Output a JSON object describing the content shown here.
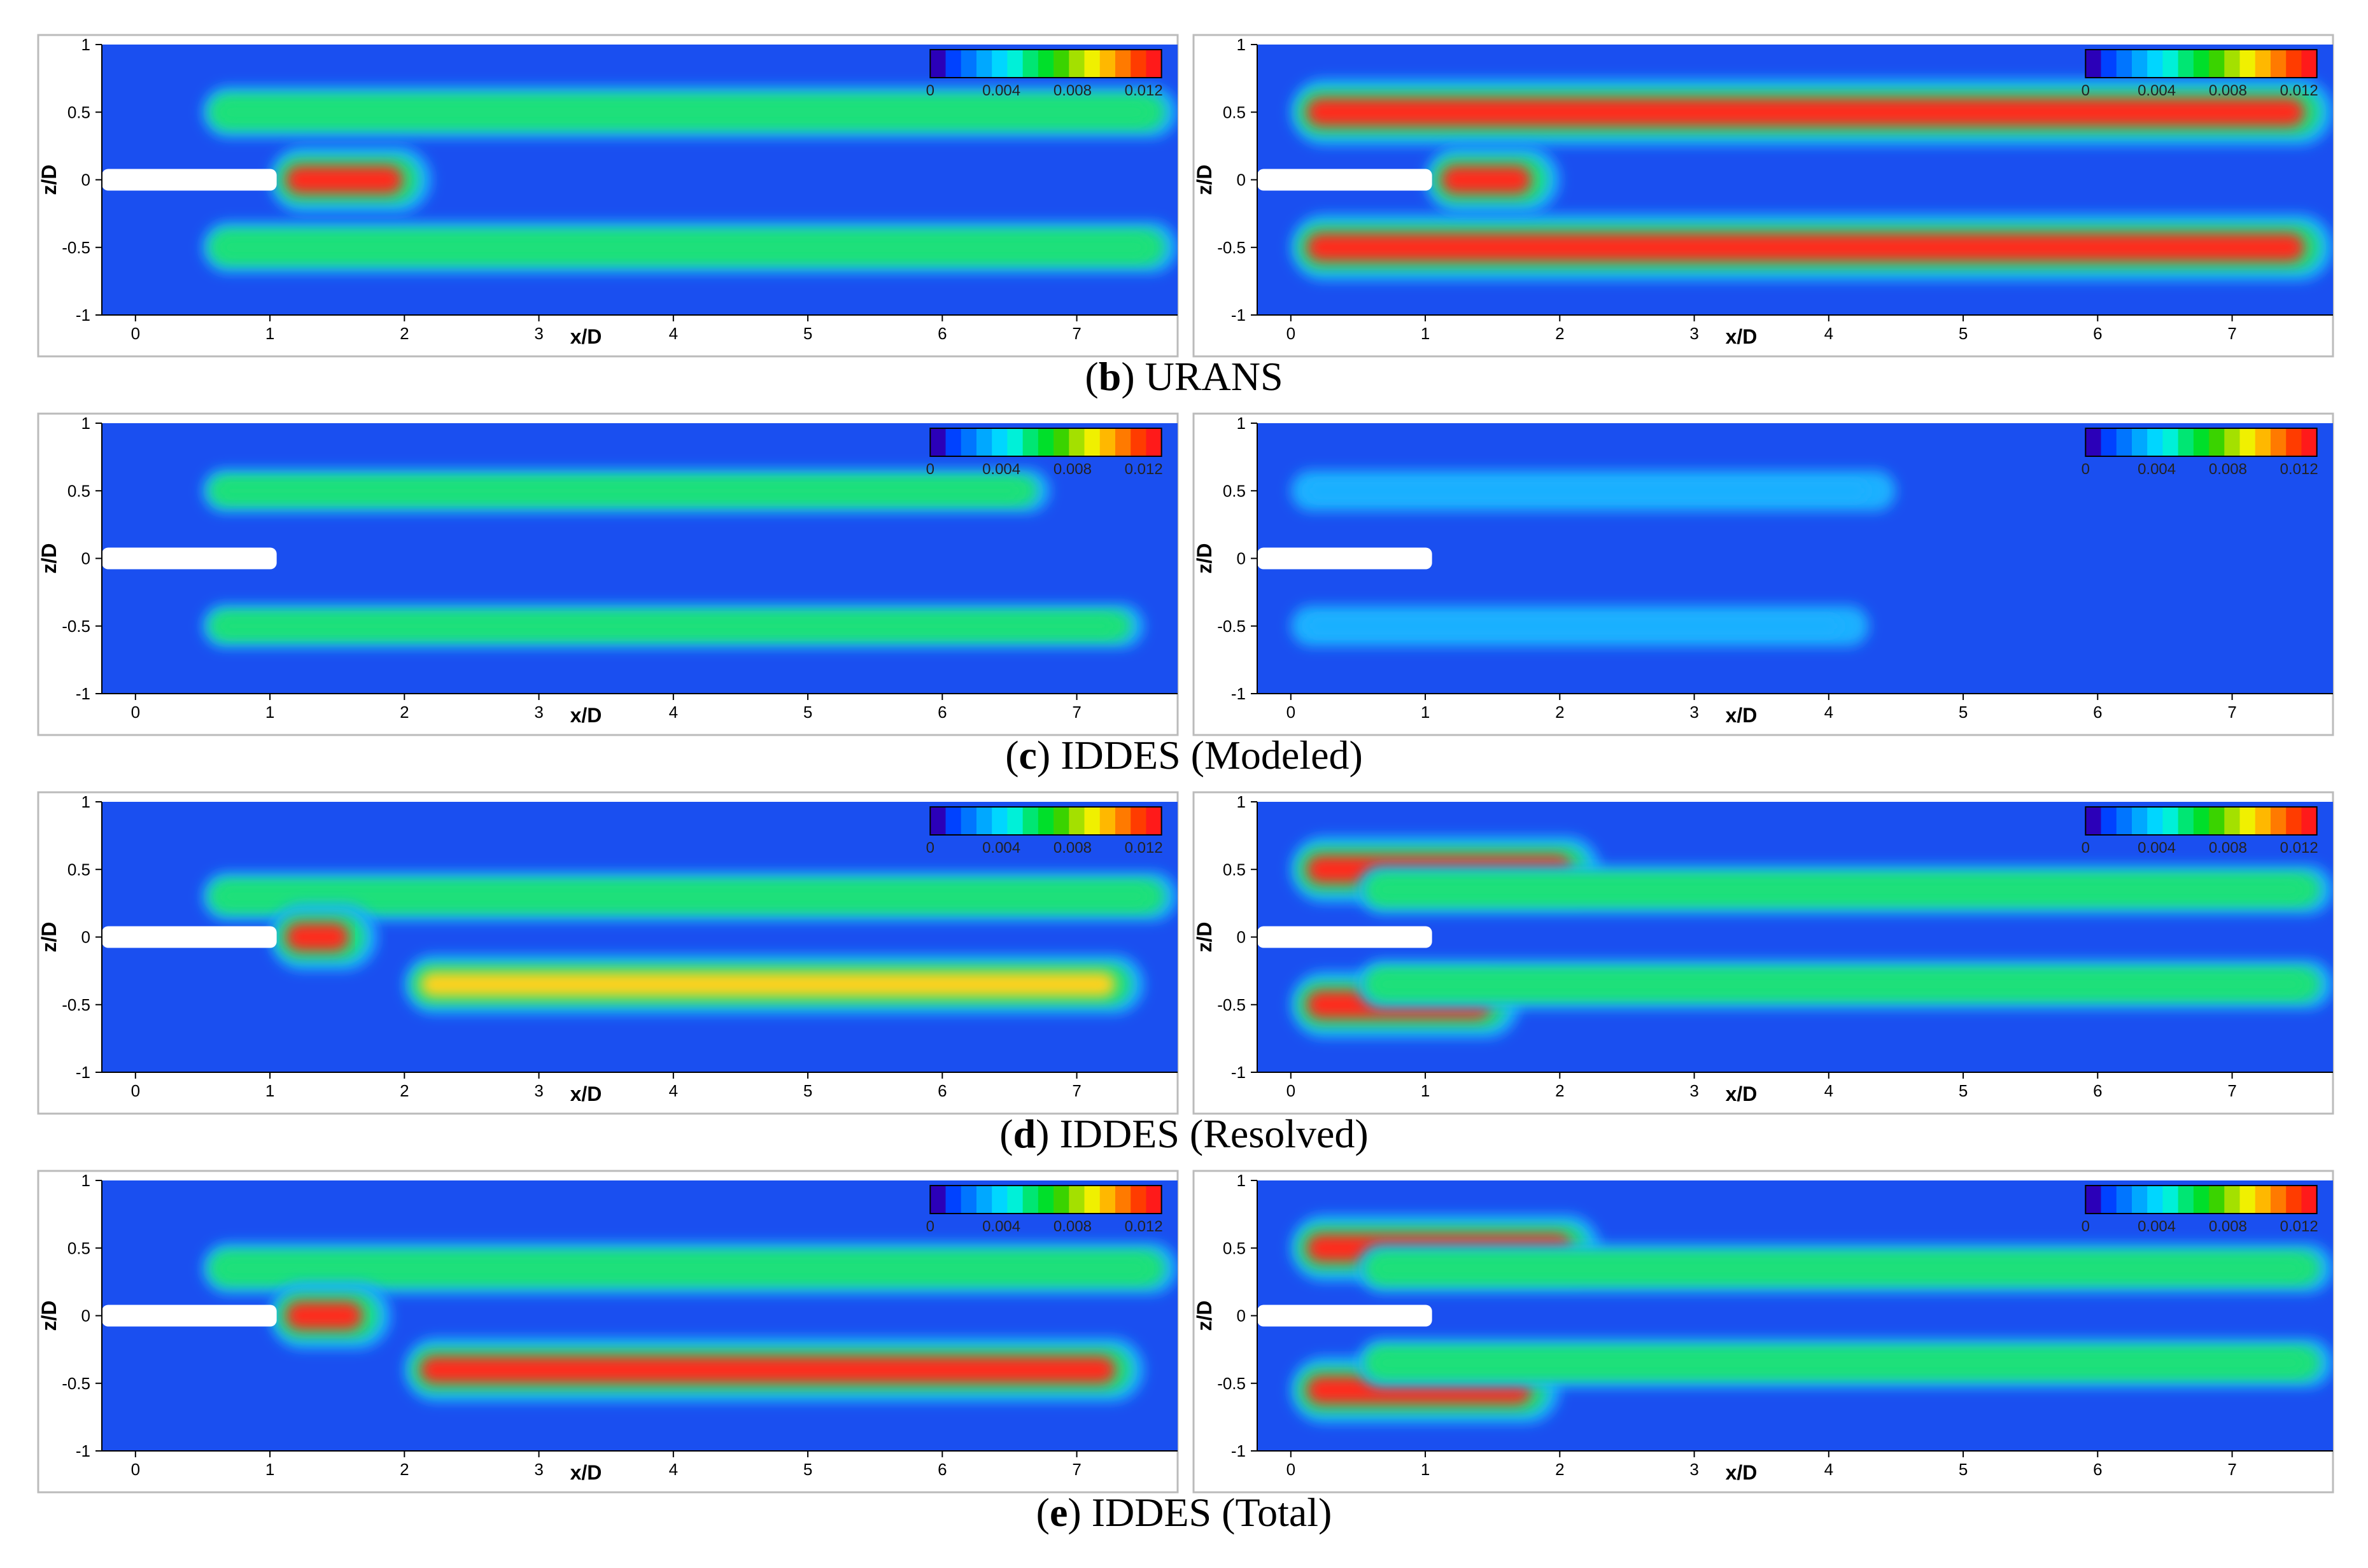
{
  "figure": {
    "rows": [
      {
        "caption_letter": "b",
        "caption_text": "URANS"
      },
      {
        "caption_letter": "c",
        "caption_text": "IDDES (Modeled)"
      },
      {
        "caption_letter": "d",
        "caption_text": "IDDES (Resolved)"
      },
      {
        "caption_letter": "e",
        "caption_text": "IDDES (Total)"
      }
    ],
    "panel_columns": [
      "left",
      "right"
    ]
  },
  "axes": {
    "xlabel": "x/D",
    "ylabel": "z/D",
    "x_ticks": [
      "0",
      "1",
      "2",
      "3",
      "4",
      "5",
      "6",
      "7"
    ],
    "y_ticks": [
      "1",
      "0.5",
      "0",
      "-0.5",
      "-1"
    ],
    "xlim": [
      -0.25,
      7.75
    ],
    "ylim": [
      -1,
      1
    ]
  },
  "colorbar": {
    "tick_labels": [
      "0",
      "0.004",
      "0.008",
      "0.012"
    ],
    "range": [
      0,
      0.013
    ],
    "colors": [
      "#2b00b8",
      "#0042ff",
      "#0075ff",
      "#00a8ff",
      "#00d6ff",
      "#00f0d8",
      "#00e673",
      "#00df2a",
      "#3ad300",
      "#a4e000",
      "#f0f000",
      "#ffb800",
      "#ff7a00",
      "#ff3c00",
      "#ff1a1a"
    ]
  },
  "chart_data": {
    "type": "heatmap",
    "field_colors": {
      "background": "#1a4ff0",
      "low": "#1ab0ff",
      "mid": "#1ee07a",
      "high": "#ffd21a",
      "peak": "#ff2a1a"
    },
    "panels": [
      {
        "row": "b",
        "column": "left",
        "bands": [
          {
            "x0": 0.5,
            "x1": 7.8,
            "z": 0.5,
            "level": 0.007
          },
          {
            "x0": 0.5,
            "x1": 7.8,
            "z": -0.5,
            "level": 0.007
          },
          {
            "x0": 1.0,
            "x1": 2.2,
            "z": 0.0,
            "level": 0.013
          }
        ]
      },
      {
        "row": "b",
        "column": "right",
        "bands": [
          {
            "x0": 0.0,
            "x1": 7.8,
            "z": 0.5,
            "level": 0.013
          },
          {
            "x0": 0.0,
            "x1": 7.8,
            "z": -0.5,
            "level": 0.013
          },
          {
            "x0": 1.0,
            "x1": 2.0,
            "z": 0.0,
            "level": 0.013
          }
        ]
      },
      {
        "row": "c",
        "column": "left",
        "bands": [
          {
            "x0": 0.5,
            "x1": 6.8,
            "z": 0.5,
            "level": 0.004
          },
          {
            "x0": 0.5,
            "x1": 7.5,
            "z": -0.5,
            "level": 0.004
          }
        ]
      },
      {
        "row": "c",
        "column": "right",
        "bands": [
          {
            "x0": 0.0,
            "x1": 4.5,
            "z": 0.5,
            "level": 0.003
          },
          {
            "x0": 0.0,
            "x1": 4.3,
            "z": -0.5,
            "level": 0.003
          }
        ]
      },
      {
        "row": "d",
        "column": "left",
        "bands": [
          {
            "x0": 0.5,
            "x1": 7.8,
            "z": 0.3,
            "level": 0.006
          },
          {
            "x0": 2.0,
            "x1": 7.5,
            "z": -0.35,
            "level": 0.01
          },
          {
            "x0": 1.0,
            "x1": 1.8,
            "z": 0.0,
            "level": 0.013
          }
        ]
      },
      {
        "row": "d",
        "column": "right",
        "bands": [
          {
            "x0": 0.0,
            "x1": 2.3,
            "z": 0.5,
            "level": 0.013
          },
          {
            "x0": 0.0,
            "x1": 1.7,
            "z": -0.5,
            "level": 0.013
          },
          {
            "x0": 0.5,
            "x1": 7.8,
            "z": 0.35,
            "level": 0.006
          },
          {
            "x0": 0.5,
            "x1": 7.8,
            "z": -0.35,
            "level": 0.006
          }
        ]
      },
      {
        "row": "e",
        "column": "left",
        "bands": [
          {
            "x0": 0.5,
            "x1": 7.8,
            "z": 0.35,
            "level": 0.007
          },
          {
            "x0": 2.0,
            "x1": 7.5,
            "z": -0.4,
            "level": 0.012
          },
          {
            "x0": 1.0,
            "x1": 1.9,
            "z": 0.0,
            "level": 0.013
          }
        ]
      },
      {
        "row": "e",
        "column": "right",
        "bands": [
          {
            "x0": 0.0,
            "x1": 2.3,
            "z": 0.5,
            "level": 0.013
          },
          {
            "x0": 0.0,
            "x1": 2.0,
            "z": -0.55,
            "level": 0.013
          },
          {
            "x0": 0.5,
            "x1": 7.8,
            "z": 0.35,
            "level": 0.006
          },
          {
            "x0": 0.5,
            "x1": 7.8,
            "z": -0.35,
            "level": 0.006
          }
        ]
      }
    ]
  }
}
